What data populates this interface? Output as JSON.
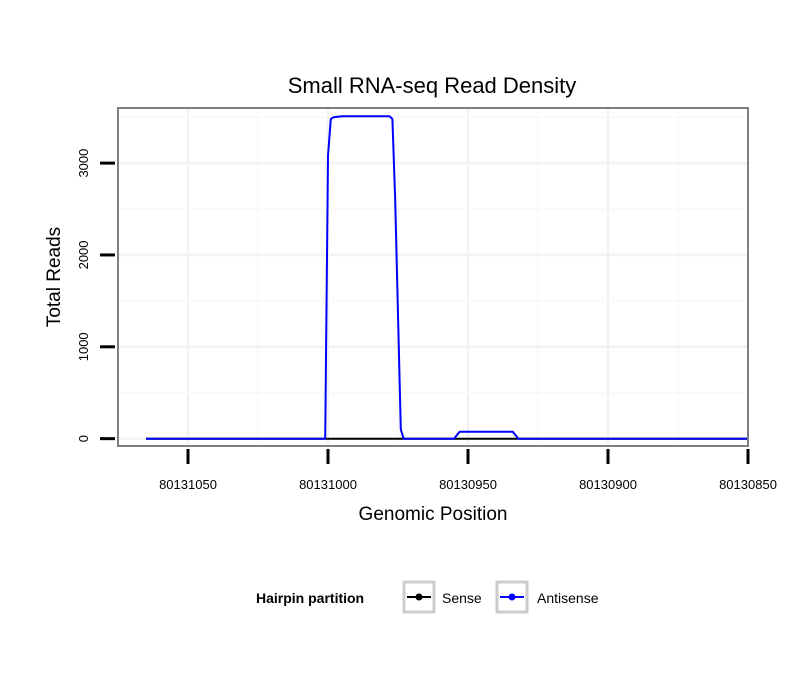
{
  "chart_data": {
    "type": "line",
    "title": "Small RNA-seq Read Density",
    "xlabel": "Genomic Position",
    "ylabel": "Total Reads",
    "x_reversed": true,
    "xlim": [
      80131075,
      80130850
    ],
    "ylim": [
      -80,
      3600
    ],
    "x_ticks": [
      80131050,
      80131000,
      80130950,
      80130900,
      80130850
    ],
    "x_tick_labels": [
      "80131050",
      "80131000",
      "80130950",
      "80130900",
      "80130850"
    ],
    "y_ticks": [
      0,
      1000,
      2000,
      3000
    ],
    "y_tick_labels": [
      "0",
      "1000",
      "2000",
      "3000"
    ],
    "grid": true,
    "legend": {
      "title": "Hairpin partition",
      "position": "bottom",
      "entries": [
        "Sense",
        "Antisense"
      ]
    },
    "series": [
      {
        "name": "Sense",
        "color": "#000000",
        "x": [
          80131065,
          80130850
        ],
        "y": [
          0,
          0
        ]
      },
      {
        "name": "Antisense",
        "color": "#0000ff",
        "x": [
          80131065,
          80131001,
          80131000,
          80130999,
          80130998,
          80130995,
          80130978,
          80130977,
          80130976,
          80130974,
          80130973,
          80130955,
          80130953,
          80130934,
          80130932,
          80130850
        ],
        "y": [
          0,
          0,
          3080,
          3480,
          3500,
          3510,
          3510,
          3480,
          2600,
          100,
          0,
          0,
          75,
          75,
          0,
          0
        ]
      }
    ]
  }
}
